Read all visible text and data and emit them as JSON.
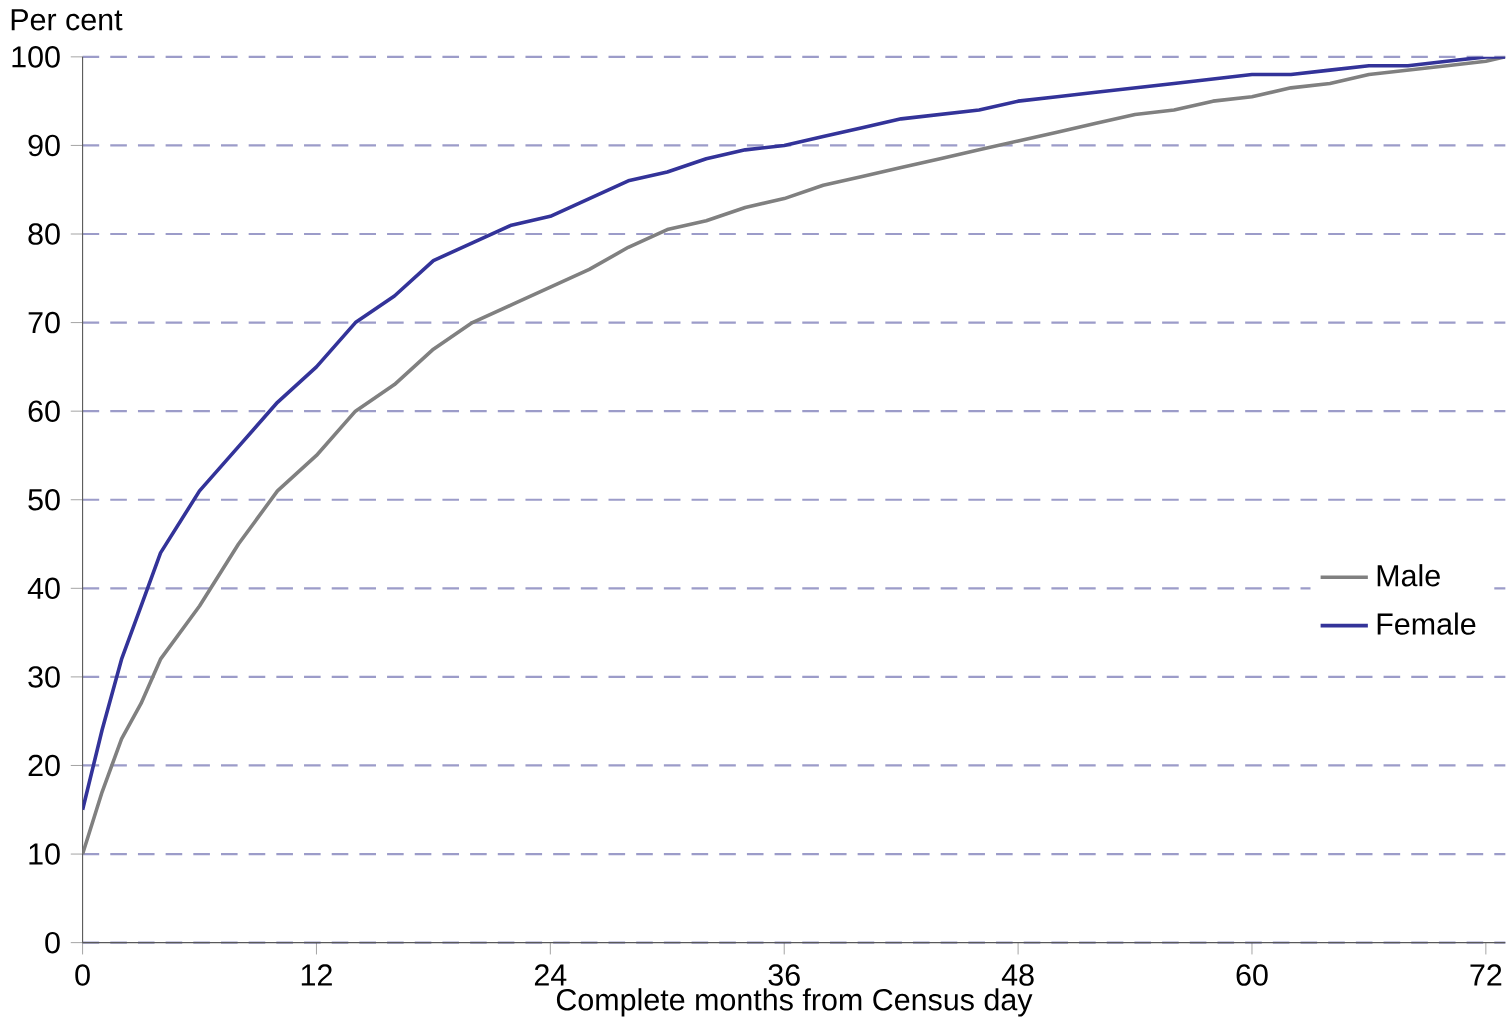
{
  "chart_data": {
    "type": "line",
    "ylabel": "Per cent",
    "xlabel": "Complete months from Census day",
    "xlim": [
      0,
      73
    ],
    "xticks": [
      0,
      12,
      24,
      36,
      48,
      60,
      72
    ],
    "ylim": [
      0,
      100
    ],
    "yticks": [
      0,
      10,
      20,
      30,
      40,
      50,
      60,
      70,
      80,
      90,
      100
    ],
    "grid": "y",
    "legend": "right",
    "line_style": "solid",
    "marker": "none",
    "series": [
      {
        "name": "Male",
        "color": "#808080",
        "x": [
          0,
          1,
          2,
          3,
          4,
          6,
          8,
          10,
          12,
          14,
          16,
          18,
          20,
          22,
          24,
          26,
          28,
          30,
          32,
          34,
          36,
          38,
          40,
          42,
          44,
          46,
          48,
          50,
          52,
          54,
          56,
          58,
          60,
          62,
          64,
          66,
          68,
          70,
          72,
          73
        ],
        "values": [
          10,
          17,
          23,
          27,
          32,
          38,
          45,
          51,
          55,
          60,
          63,
          67,
          70,
          72,
          74,
          76,
          78.5,
          80.5,
          81.5,
          83,
          84,
          85.5,
          86.5,
          87.5,
          88.5,
          89.5,
          90.5,
          91.5,
          92.5,
          93.5,
          94,
          95,
          95.5,
          96.5,
          97,
          98,
          98.5,
          99,
          99.5,
          100
        ]
      },
      {
        "name": "Female",
        "color": "#333399",
        "x": [
          0,
          1,
          2,
          3,
          4,
          6,
          8,
          10,
          12,
          14,
          16,
          18,
          20,
          22,
          24,
          26,
          28,
          30,
          32,
          34,
          36,
          38,
          40,
          42,
          44,
          46,
          48,
          50,
          52,
          54,
          56,
          58,
          60,
          62,
          64,
          66,
          68,
          70,
          72,
          73
        ],
        "values": [
          15,
          24,
          32,
          38,
          44,
          51,
          56,
          61,
          65,
          70,
          73,
          77,
          79,
          81,
          82,
          84,
          86,
          87,
          88.5,
          89.5,
          90,
          91,
          92,
          93,
          93.5,
          94,
          95,
          95.5,
          96,
          96.5,
          97,
          97.5,
          98,
          98,
          98.5,
          99,
          99,
          99.5,
          100,
          100
        ]
      }
    ]
  }
}
